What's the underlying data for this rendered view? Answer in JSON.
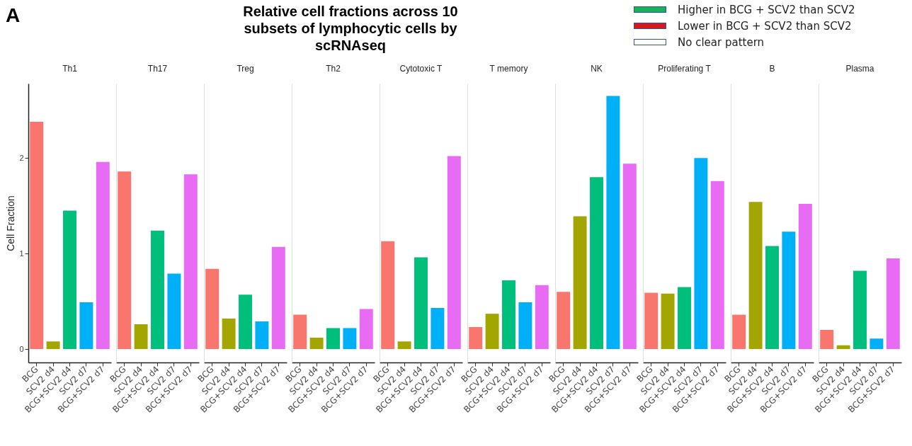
{
  "chart_data": [
    {
      "type": "other",
      "title": "Relative cell fractions across 10 subsets of lymphocytic cells by scRNAseq",
      "annotations": [
        "A"
      ],
      "categories": [
        "Higher in BCG + SCV2 than SCV2",
        "Lower in BCG + SCV2 than SCV2",
        "No clear pattern"
      ],
      "colors": [
        "#18b25a",
        "#d7191c",
        "#ffffff"
      ]
    },
    {
      "type": "bar",
      "title": "Th1",
      "ylabel": "Cell Fraction",
      "categories": [
        "BCG",
        "SCV2 d4",
        "BCG+SCV2 d4",
        "SCV2 d7",
        "BCG+SCV2 d7"
      ],
      "values": [
        2.38,
        0.08,
        1.45,
        0.49,
        1.96
      ],
      "colors": [
        "#f8766d",
        "#a3a500",
        "#00bf7d",
        "#00b0f6",
        "#e76bf3"
      ],
      "ylim": [
        -0.14,
        2.78
      ],
      "yticks": [
        0,
        1,
        2
      ]
    },
    {
      "type": "bar",
      "title": "Th17",
      "categories": [
        "BCG",
        "SCV2 d4",
        "BCG+SCV2 d4",
        "SCV2 d7",
        "BCG+SCV2 d7"
      ],
      "values": [
        1.86,
        0.26,
        1.24,
        0.79,
        1.83
      ],
      "colors": [
        "#f8766d",
        "#a3a500",
        "#00bf7d",
        "#00b0f6",
        "#e76bf3"
      ],
      "ylim": [
        -0.14,
        2.78
      ],
      "yticks": [
        0,
        1,
        2
      ],
      "tick_labels": "x"
    },
    {
      "type": "bar",
      "title": "Treg",
      "categories": [
        "BCG",
        "SCV2 d4",
        "BCG+SCV2 d4",
        "SCV2 d7",
        "BCG+SCV2 d7"
      ],
      "values": [
        0.84,
        0.32,
        0.57,
        0.29,
        1.07
      ],
      "colors": [
        "#f8766d",
        "#a3a500",
        "#00bf7d",
        "#00b0f6",
        "#e76bf3"
      ],
      "ylim": [
        -0.14,
        2.78
      ],
      "yticks": [
        0,
        1,
        2
      ],
      "tick_labels": "x"
    },
    {
      "type": "bar",
      "title": "Th2",
      "categories": [
        "BCG",
        "SCV2 d4",
        "BCG+SCV2 d4",
        "SCV2 d7",
        "BCG+SCV2 d7"
      ],
      "values": [
        0.36,
        0.12,
        0.22,
        0.22,
        0.42
      ],
      "colors": [
        "#f8766d",
        "#a3a500",
        "#00bf7d",
        "#00b0f6",
        "#e76bf3"
      ],
      "ylim": [
        -0.14,
        2.78
      ],
      "yticks": [
        0,
        1,
        2
      ],
      "tick_labels": "x"
    },
    {
      "type": "bar",
      "title": "Cytotoxic T",
      "categories": [
        "BCG",
        "SCV2 d4",
        "BCG+SCV2 d4",
        "SCV2 d7",
        "BCG+SCV2 d7"
      ],
      "values": [
        1.13,
        0.08,
        0.96,
        0.43,
        2.02
      ],
      "colors": [
        "#f8766d",
        "#a3a500",
        "#00bf7d",
        "#00b0f6",
        "#e76bf3"
      ],
      "ylim": [
        -0.14,
        2.78
      ],
      "yticks": [
        0,
        1,
        2
      ],
      "tick_labels": "x"
    },
    {
      "type": "bar",
      "title": "T memory",
      "categories": [
        "BCG",
        "SCV2 d4",
        "BCG+SCV2 d4",
        "SCV2 d7",
        "BCG+SCV2 d7"
      ],
      "values": [
        0.23,
        0.37,
        0.72,
        0.49,
        0.67
      ],
      "colors": [
        "#f8766d",
        "#a3a500",
        "#00bf7d",
        "#00b0f6",
        "#e76bf3"
      ],
      "ylim": [
        -0.14,
        2.78
      ],
      "yticks": [
        0,
        1,
        2
      ],
      "tick_labels": "x"
    },
    {
      "type": "bar",
      "title": "NK",
      "categories": [
        "BCG",
        "SCV2 d4",
        "BCG+SCV2 d4",
        "SCV2 d7",
        "BCG+SCV2 d7"
      ],
      "values": [
        0.6,
        1.39,
        1.8,
        2.65,
        1.94
      ],
      "colors": [
        "#f8766d",
        "#a3a500",
        "#00bf7d",
        "#00b0f6",
        "#e76bf3"
      ],
      "ylim": [
        -0.14,
        2.78
      ],
      "yticks": [
        0,
        1,
        2
      ],
      "tick_labels": "x"
    },
    {
      "type": "bar",
      "title": "Proliferating T",
      "categories": [
        "BCG",
        "SCV2 d4",
        "BCG+SCV2 d4",
        "SCV2 d7",
        "BCG+SCV2 d7"
      ],
      "values": [
        0.59,
        0.58,
        0.65,
        2.0,
        1.76
      ],
      "colors": [
        "#f8766d",
        "#a3a500",
        "#00bf7d",
        "#00b0f6",
        "#e76bf3"
      ],
      "ylim": [
        -0.14,
        2.78
      ],
      "yticks": [
        0,
        1,
        2
      ],
      "tick_labels": "x"
    },
    {
      "type": "bar",
      "title": "B",
      "categories": [
        "BCG",
        "SCV2 d4",
        "BCG+SCV2 d4",
        "SCV2 d7",
        "BCG+SCV2 d7"
      ],
      "values": [
        0.36,
        1.54,
        1.08,
        1.23,
        1.52
      ],
      "colors": [
        "#f8766d",
        "#a3a500",
        "#00bf7d",
        "#00b0f6",
        "#e76bf3"
      ],
      "ylim": [
        -0.14,
        2.78
      ],
      "yticks": [
        0,
        1,
        2
      ],
      "tick_labels": "x"
    },
    {
      "type": "bar",
      "title": "Plasma",
      "categories": [
        "BCG",
        "SCV2 d4",
        "BCG+SCV2 d4",
        "SCV2 d7",
        "BCG+SCV2 d7"
      ],
      "values": [
        0.2,
        0.04,
        0.82,
        0.11,
        0.95
      ],
      "colors": [
        "#f8766d",
        "#a3a500",
        "#00bf7d",
        "#00b0f6",
        "#e76bf3"
      ],
      "ylim": [
        -0.14,
        2.78
      ],
      "yticks": [
        0,
        1,
        2
      ],
      "tick_labels": "x"
    }
  ]
}
